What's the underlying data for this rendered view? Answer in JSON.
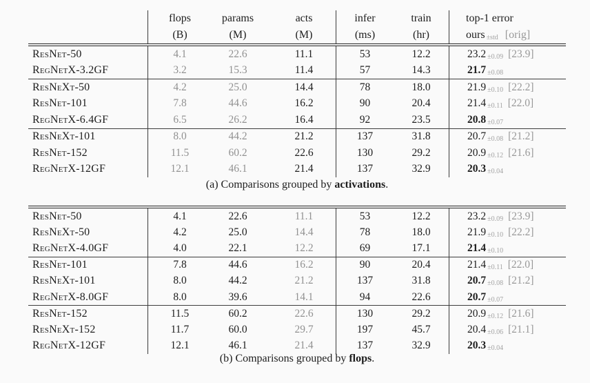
{
  "colors": {
    "page_bg": "#fafafa",
    "ink": "#1d1d1d",
    "muted_value": "#919191",
    "std_dev": "#a2a2a2",
    "orig_value": "#989898",
    "rule": "#1f1f1f"
  },
  "columns": [
    {
      "key": "flops",
      "label": "flops",
      "unit": "(B)"
    },
    {
      "key": "params",
      "label": "params",
      "unit": "(M)"
    },
    {
      "key": "acts",
      "label": "acts",
      "unit": "(M)"
    },
    {
      "key": "infer",
      "label": "infer",
      "unit": "(ms)"
    },
    {
      "key": "train",
      "label": "train",
      "unit": "(hr)"
    }
  ],
  "top1_header": {
    "line1": "top-1 error",
    "ours": "ours",
    "pm": "±std",
    "orig": "[orig]"
  },
  "tables": [
    {
      "name": "a",
      "caption": {
        "prefix": "(a) Comparisons grouped by ",
        "bold": "activations",
        "suffix": "."
      },
      "gray_columns": [
        "flops",
        "params"
      ],
      "groups": [
        {
          "rows": [
            {
              "model": "ResNet-50",
              "flops": "4.1",
              "params": "22.6",
              "acts": "11.1",
              "infer": "53",
              "train": "12.2",
              "top1": {
                "val": "23.2",
                "bold": false,
                "pm": "±0.09",
                "orig": "[23.9]"
              }
            },
            {
              "model": "RegNetX-3.2GF",
              "flops": "3.2",
              "params": "15.3",
              "acts": "11.4",
              "infer": "57",
              "train": "14.3",
              "top1": {
                "val": "21.7",
                "bold": true,
                "pm": "±0.08",
                "orig": ""
              }
            }
          ]
        },
        {
          "rows": [
            {
              "model": "ResNeXt-50",
              "flops": "4.2",
              "params": "25.0",
              "acts": "14.4",
              "infer": "78",
              "train": "18.0",
              "top1": {
                "val": "21.9",
                "bold": false,
                "pm": "±0.10",
                "orig": "[22.2]"
              }
            },
            {
              "model": "ResNet-101",
              "flops": "7.8",
              "params": "44.6",
              "acts": "16.2",
              "infer": "90",
              "train": "20.4",
              "top1": {
                "val": "21.4",
                "bold": false,
                "pm": "±0.11",
                "orig": "[22.0]"
              }
            },
            {
              "model": "RegNetX-6.4GF",
              "flops": "6.5",
              "params": "26.2",
              "acts": "16.4",
              "infer": "92",
              "train": "23.5",
              "top1": {
                "val": "20.8",
                "bold": true,
                "pm": "±0.07",
                "orig": ""
              }
            }
          ]
        },
        {
          "rows": [
            {
              "model": "ResNeXt-101",
              "flops": "8.0",
              "params": "44.2",
              "acts": "21.2",
              "infer": "137",
              "train": "31.8",
              "top1": {
                "val": "20.7",
                "bold": false,
                "pm": "±0.08",
                "orig": "[21.2]"
              }
            },
            {
              "model": "ResNet-152",
              "flops": "11.5",
              "params": "60.2",
              "acts": "22.6",
              "infer": "130",
              "train": "29.2",
              "top1": {
                "val": "20.9",
                "bold": false,
                "pm": "±0.12",
                "orig": "[21.6]"
              }
            },
            {
              "model": "RegNetX-12GF",
              "flops": "12.1",
              "params": "46.1",
              "acts": "21.4",
              "infer": "137",
              "train": "32.9",
              "top1": {
                "val": "20.3",
                "bold": true,
                "pm": "±0.04",
                "orig": ""
              }
            }
          ]
        }
      ]
    },
    {
      "name": "b",
      "caption": {
        "prefix": "(b) Comparisons grouped by ",
        "bold": "flops",
        "suffix": "."
      },
      "gray_columns": [
        "acts"
      ],
      "groups": [
        {
          "rows": [
            {
              "model": "ResNet-50",
              "flops": "4.1",
              "params": "22.6",
              "acts": "11.1",
              "infer": "53",
              "train": "12.2",
              "top1": {
                "val": "23.2",
                "bold": false,
                "pm": "±0.09",
                "orig": "[23.9]"
              }
            },
            {
              "model": "ResNeXt-50",
              "flops": "4.2",
              "params": "25.0",
              "acts": "14.4",
              "infer": "78",
              "train": "18.0",
              "top1": {
                "val": "21.9",
                "bold": false,
                "pm": "±0.10",
                "orig": "[22.2]"
              }
            },
            {
              "model": "RegNetX-4.0GF",
              "flops": "4.0",
              "params": "22.1",
              "acts": "12.2",
              "infer": "69",
              "train": "17.1",
              "top1": {
                "val": "21.4",
                "bold": true,
                "pm": "±0.10",
                "orig": ""
              }
            }
          ]
        },
        {
          "rows": [
            {
              "model": "ResNet-101",
              "flops": "7.8",
              "params": "44.6",
              "acts": "16.2",
              "infer": "90",
              "train": "20.4",
              "top1": {
                "val": "21.4",
                "bold": false,
                "pm": "±0.11",
                "orig": "[22.0]"
              }
            },
            {
              "model": "ResNeXt-101",
              "flops": "8.0",
              "params": "44.2",
              "acts": "21.2",
              "infer": "137",
              "train": "31.8",
              "top1": {
                "val": "20.7",
                "bold": true,
                "pm": "±0.08",
                "orig": "[21.2]"
              }
            },
            {
              "model": "RegNetX-8.0GF",
              "flops": "8.0",
              "params": "39.6",
              "acts": "14.1",
              "infer": "94",
              "train": "22.6",
              "top1": {
                "val": "20.7",
                "bold": true,
                "pm": "±0.07",
                "orig": ""
              }
            }
          ]
        },
        {
          "rows": [
            {
              "model": "ResNet-152",
              "flops": "11.5",
              "params": "60.2",
              "acts": "22.6",
              "infer": "130",
              "train": "29.2",
              "top1": {
                "val": "20.9",
                "bold": false,
                "pm": "±0.12",
                "orig": "[21.6]"
              }
            },
            {
              "model": "ResNeXt-152",
              "flops": "11.7",
              "params": "60.0",
              "acts": "29.7",
              "infer": "197",
              "train": "45.7",
              "top1": {
                "val": "20.4",
                "bold": false,
                "pm": "±0.06",
                "orig": "[21.1]"
              }
            },
            {
              "model": "RegNetX-12GF",
              "flops": "12.1",
              "params": "46.1",
              "acts": "21.4",
              "infer": "137",
              "train": "32.9",
              "top1": {
                "val": "20.3",
                "bold": true,
                "pm": "±0.04",
                "orig": ""
              }
            }
          ]
        }
      ]
    }
  ]
}
